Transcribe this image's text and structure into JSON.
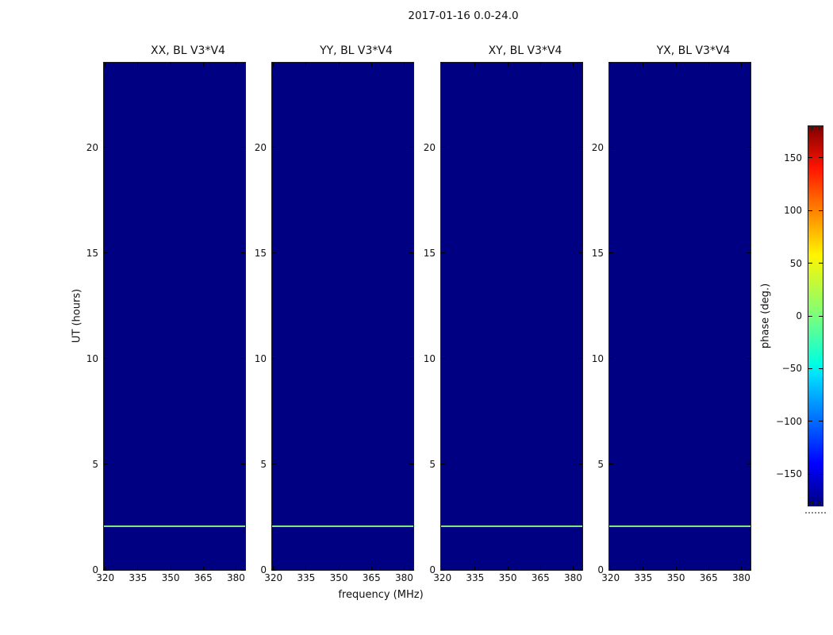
{
  "figure": {
    "title": "2017-01-16 0.0-24.0",
    "xlabel": "frequency (MHz)",
    "ylabel": "UT (hours)",
    "colorbar_label": "phase (deg.)",
    "background_color": "#ffffff"
  },
  "chart_data": {
    "type": "heatmap",
    "title": "2017-01-16 0.0-24.0",
    "xlabel": "frequency (MHz)",
    "ylabel": "UT (hours)",
    "x_range_mhz": [
      319.4,
      384.2
    ],
    "y_range_hours": [
      0,
      24
    ],
    "x_ticks": [
      320,
      335,
      350,
      365,
      380
    ],
    "y_ticks": [
      0,
      5,
      10,
      15,
      20
    ],
    "grid": false,
    "panels": [
      {
        "title": "XX, BL V3*V4"
      },
      {
        "title": "YY, BL V3*V4"
      },
      {
        "title": "XY, BL V3*V4"
      },
      {
        "title": "YX, BL V3*V4"
      }
    ],
    "data_features": {
      "background_phase_deg": -180,
      "background_color": "#000082",
      "horizontal_line": {
        "ut_hours": 2.07,
        "phase_deg": 0,
        "color": "#7de87d",
        "spans_full_frequency_range": true,
        "present_in_all_panels": true
      }
    },
    "colorbar": {
      "label": "phase (deg.)",
      "range_deg": [
        -180,
        180
      ],
      "colormap": "jet",
      "ticks": [
        {
          "value": 150,
          "label": "150"
        },
        {
          "value": 100,
          "label": "100"
        },
        {
          "value": 50,
          "label": "50"
        },
        {
          "value": 0,
          "label": "0"
        },
        {
          "value": -50,
          "label": "−50"
        },
        {
          "value": -100,
          "label": "−100"
        },
        {
          "value": -150,
          "label": "−150"
        }
      ],
      "gradient_stops": [
        {
          "pos": 0.0,
          "color": "#000080"
        },
        {
          "pos": 0.11,
          "color": "#0000ff"
        },
        {
          "pos": 0.34,
          "color": "#00dbff"
        },
        {
          "pos": 0.375,
          "color": "#00ffe2"
        },
        {
          "pos": 0.5,
          "color": "#7bff7b"
        },
        {
          "pos": 0.66,
          "color": "#fff500"
        },
        {
          "pos": 0.89,
          "color": "#ff1400"
        },
        {
          "pos": 1.0,
          "color": "#800000"
        }
      ]
    }
  }
}
